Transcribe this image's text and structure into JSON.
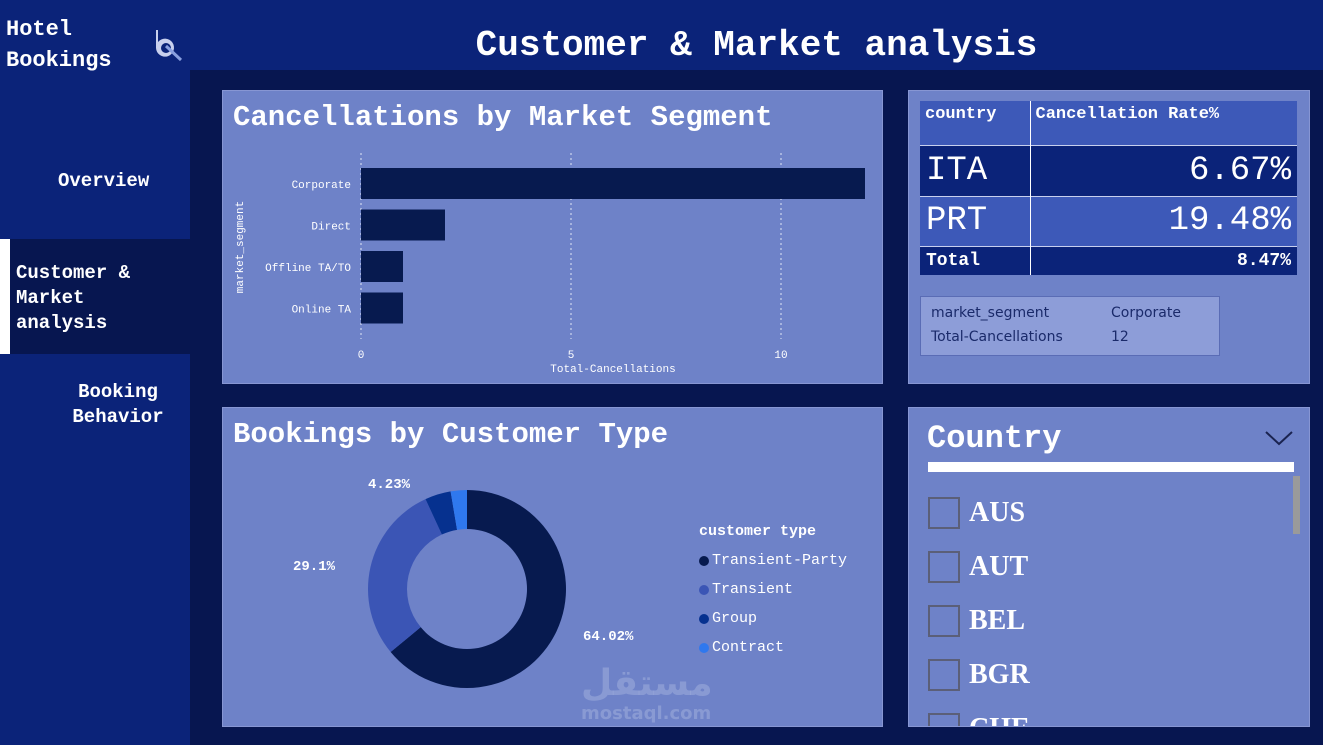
{
  "app": {
    "title": "Hotel Bookings",
    "logo_icon": "bookings-logo-icon"
  },
  "page": {
    "title": "Customer & Market analysis"
  },
  "sidebar": {
    "items": [
      {
        "label": "Overview"
      },
      {
        "label": "Customer & Market analysis",
        "active": true
      },
      {
        "label": "Booking Behavior"
      }
    ]
  },
  "market_chart": {
    "title": "Cancellations by Market Segment",
    "chart_data": {
      "type": "bar",
      "orientation": "horizontal",
      "categories": [
        "Corporate",
        "Direct",
        "Offline TA/TO",
        "Online TA"
      ],
      "values": [
        12,
        2,
        1,
        1
      ],
      "xlabel": "Total-Cancellations",
      "ylabel": "market_segment",
      "xlim": [
        0,
        12
      ],
      "xticks": [
        "0",
        "5",
        "10"
      ],
      "grid": true,
      "color": "#071a4f"
    },
    "tooltip": {
      "rows": [
        {
          "label": "market_segment",
          "value": "Corporate"
        },
        {
          "label": "Total-Cancellations",
          "value": "12"
        }
      ]
    }
  },
  "rate_table": {
    "headers": [
      "country",
      "Cancellation Rate%"
    ],
    "rows": [
      {
        "country": "ITA",
        "rate": "6.67%"
      },
      {
        "country": "PRT",
        "rate": "19.48%"
      }
    ],
    "total": {
      "label": "Total",
      "rate": "8.47%"
    }
  },
  "customer_chart": {
    "title": "Bookings by Customer Type",
    "chart_data": {
      "type": "pie",
      "donut": true,
      "legend_title": "customer type",
      "legend_placement": "right",
      "slices": [
        {
          "name": "Transient-Party",
          "value": 64.02,
          "label": "64.02%",
          "color": "#071a4f"
        },
        {
          "name": "Transient",
          "value": 29.1,
          "label": "29.1%",
          "color": "#3b55b5"
        },
        {
          "name": "Group",
          "value": 4.23,
          "label": "4.23%",
          "color": "#06318f"
        },
        {
          "name": "Contract",
          "value": 2.65,
          "label": "",
          "color": "#2f78ee"
        }
      ]
    }
  },
  "country_slicer": {
    "title": "Country",
    "items": [
      "AUS",
      "AUT",
      "BEL",
      "BGR",
      "CHE"
    ]
  },
  "watermark": {
    "text": "مستقل",
    "sub": "mostaql.com"
  }
}
